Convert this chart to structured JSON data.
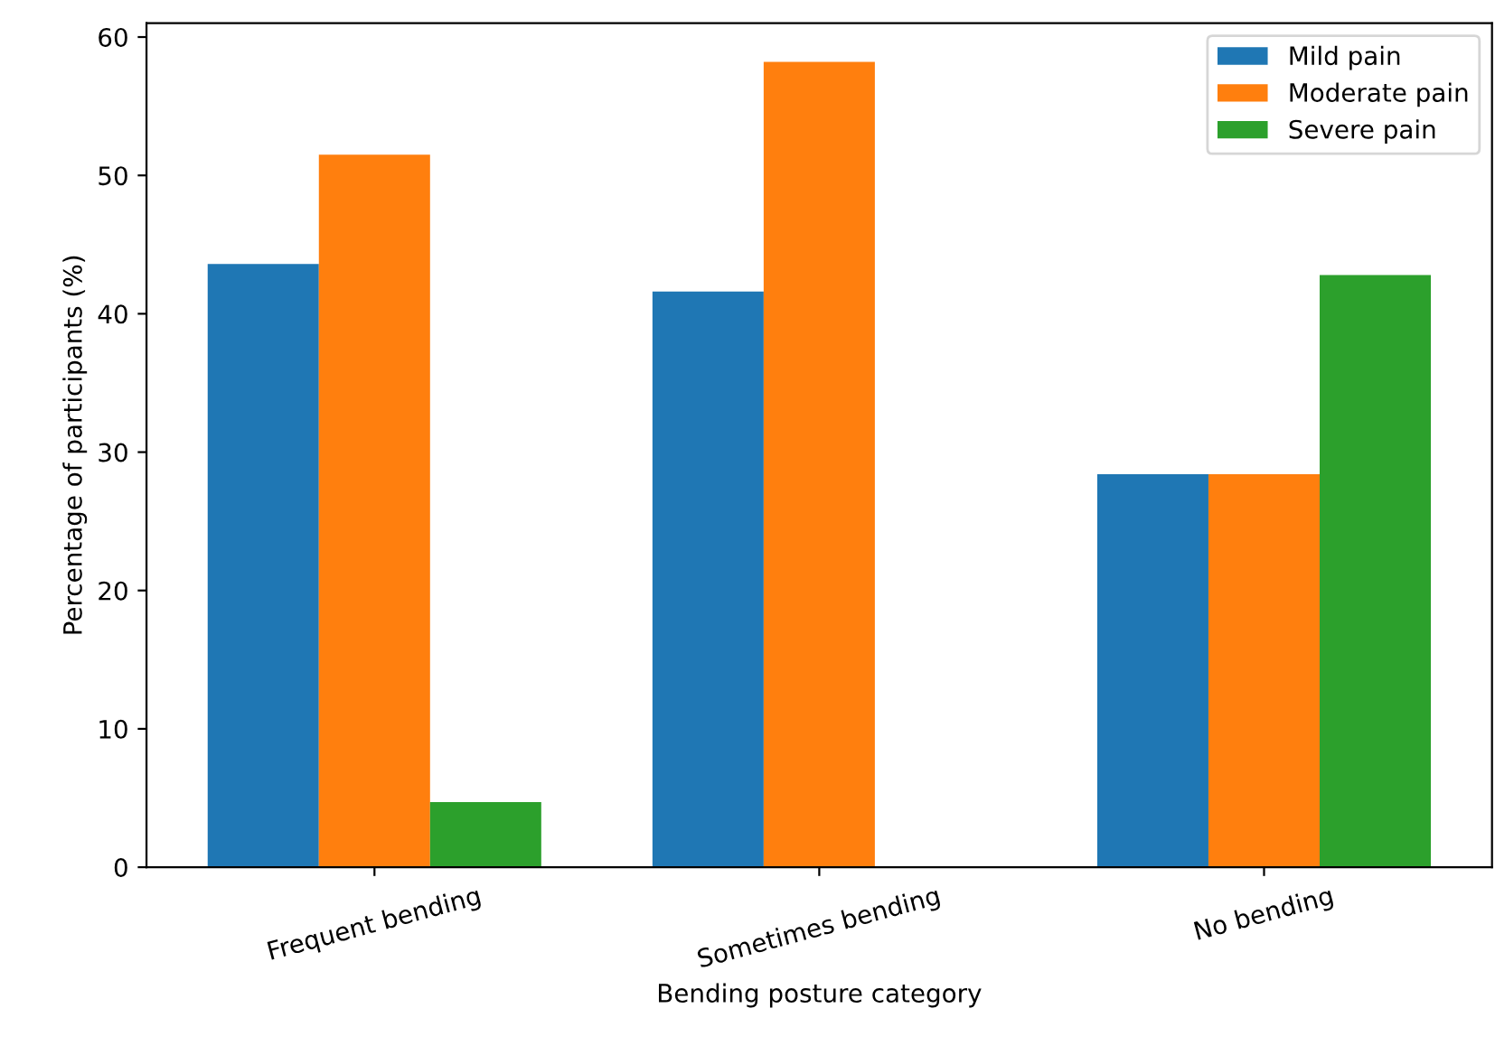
{
  "chart_data": {
    "type": "bar",
    "xlabel": "Bending posture category",
    "ylabel": "Percentage of participants (%)",
    "categories": [
      "Frequent bending",
      "Sometimes bending",
      "No bending"
    ],
    "series": [
      {
        "name": "Mild pain",
        "color": "#1f77b4",
        "values": [
          43.6,
          41.6,
          28.4
        ]
      },
      {
        "name": "Moderate pain",
        "color": "#ff7f0e",
        "values": [
          51.5,
          58.2,
          28.4
        ]
      },
      {
        "name": "Severe pain",
        "color": "#2ca02c",
        "values": [
          4.7,
          0,
          42.8
        ]
      }
    ],
    "ylim": [
      0,
      61
    ],
    "yticks": [
      0,
      10,
      20,
      30,
      40,
      50,
      60
    ],
    "grid": false,
    "legend": "top right"
  }
}
